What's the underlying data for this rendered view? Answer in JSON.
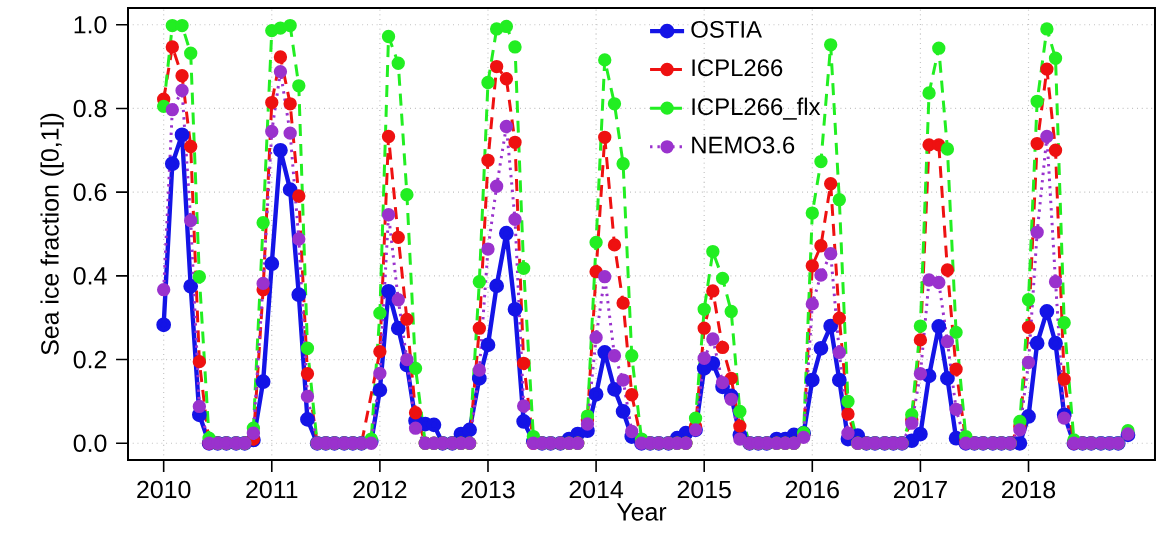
{
  "chart_data": {
    "type": "line",
    "xlabel": "Year",
    "ylabel": "Sea ice fraction ([0,1])",
    "x": [
      "2010-01",
      "2010-02",
      "2010-03",
      "2010-04",
      "2010-05",
      "2010-06",
      "2010-07",
      "2010-08",
      "2010-09",
      "2010-10",
      "2010-11",
      "2010-12",
      "2011-01",
      "2011-02",
      "2011-03",
      "2011-04",
      "2011-05",
      "2011-06",
      "2011-07",
      "2011-08",
      "2011-09",
      "2011-10",
      "2011-11",
      "2011-12",
      "2012-01",
      "2012-02",
      "2012-03",
      "2012-04",
      "2012-05",
      "2012-06",
      "2012-07",
      "2012-08",
      "2012-09",
      "2012-10",
      "2012-11",
      "2012-12",
      "2013-01",
      "2013-02",
      "2013-03",
      "2013-04",
      "2013-05",
      "2013-06",
      "2013-07",
      "2013-08",
      "2013-09",
      "2013-10",
      "2013-11",
      "2013-12",
      "2014-01",
      "2014-02",
      "2014-03",
      "2014-04",
      "2014-05",
      "2014-06",
      "2014-07",
      "2014-08",
      "2014-09",
      "2014-10",
      "2014-11",
      "2014-12",
      "2015-01",
      "2015-02",
      "2015-03",
      "2015-04",
      "2015-05",
      "2015-06",
      "2015-07",
      "2015-08",
      "2015-09",
      "2015-10",
      "2015-11",
      "2015-12",
      "2016-01",
      "2016-02",
      "2016-03",
      "2016-04",
      "2016-05",
      "2016-06",
      "2016-07",
      "2016-08",
      "2016-09",
      "2016-10",
      "2016-11",
      "2016-12",
      "2017-01",
      "2017-02",
      "2017-03",
      "2017-04",
      "2017-05",
      "2017-06",
      "2017-07",
      "2017-08",
      "2017-09",
      "2017-10",
      "2017-11",
      "2017-12",
      "2018-01",
      "2018-02",
      "2018-03",
      "2018-04",
      "2018-05",
      "2018-06",
      "2018-07",
      "2018-08",
      "2018-09",
      "2018-10",
      "2018-11",
      "2018-12"
    ],
    "series": [
      {
        "name": "OSTIA",
        "color": "#1414e6",
        "line_style": "solid",
        "values": [
          0.283,
          0.668,
          0.737,
          0.375,
          0.068,
          0,
          0,
          0,
          0,
          0,
          0.008,
          0.147,
          0.429,
          0.7,
          0.606,
          0.355,
          0.057,
          0,
          0,
          0,
          0,
          0,
          0,
          0.004,
          0.127,
          0.363,
          0.275,
          0.187,
          0.054,
          0.046,
          0.044,
          0,
          0,
          0.022,
          0.032,
          0.155,
          0.235,
          0.376,
          0.502,
          0.32,
          0.052,
          0.004,
          0,
          0,
          0,
          0.01,
          0.022,
          0.03,
          0.117,
          0.217,
          0.129,
          0.076,
          0.016,
          0,
          0,
          0,
          0,
          0.012,
          0.024,
          0.032,
          0.179,
          0.191,
          0.135,
          0.113,
          0.02,
          0,
          0,
          0,
          0.01,
          0.01,
          0.02,
          0.024,
          0.151,
          0.227,
          0.28,
          0.151,
          0.01,
          0.018,
          0,
          0,
          0,
          0,
          0,
          0.006,
          0.022,
          0.161,
          0.279,
          0.155,
          0.012,
          0,
          0,
          0,
          0,
          0,
          0,
          0,
          0.064,
          0.239,
          0.315,
          0.239,
          0.068,
          0,
          0,
          0,
          0,
          0,
          0,
          0.02
        ]
      },
      {
        "name": "ICPL266",
        "color": "#ee1111",
        "line_style": "dashed",
        "values": [
          0.822,
          0.947,
          0.878,
          0.709,
          0.195,
          0,
          0,
          0,
          0,
          0,
          0.01,
          0.367,
          0.814,
          0.923,
          0.811,
          0.591,
          0.166,
          0,
          0,
          0,
          0,
          0,
          0,
          null,
          0.219,
          0.733,
          0.492,
          0.296,
          0.073,
          0,
          0,
          0,
          0,
          0,
          0,
          0.275,
          0.676,
          0.9,
          0.871,
          0.719,
          0.191,
          0,
          0,
          0,
          0,
          0,
          0,
          0.056,
          0.41,
          0.731,
          0.474,
          0.335,
          0.116,
          0.005,
          0,
          0,
          0,
          0,
          0,
          0.04,
          0.275,
          0.364,
          0.229,
          0.155,
          0.041,
          0,
          0,
          0,
          0,
          0,
          0,
          0.02,
          0.424,
          0.472,
          0.62,
          0.299,
          0.07,
          0,
          0,
          0,
          0,
          0,
          0,
          0.056,
          0.247,
          0.713,
          0.713,
          0.414,
          0.177,
          0.005,
          0,
          0,
          0,
          0,
          0,
          0.04,
          0.277,
          0.716,
          0.894,
          0.7,
          0.153,
          0,
          0,
          0,
          null,
          null,
          null,
          null
        ]
      },
      {
        "name": "ICPL266_flx",
        "color": "#22ee22",
        "line_style": "dashed",
        "values": [
          0.805,
          0.998,
          0.998,
          0.932,
          0.398,
          0.012,
          0,
          0,
          0,
          0,
          0.036,
          0.527,
          0.986,
          0.992,
          0.998,
          0.854,
          0.227,
          0,
          0,
          0,
          0,
          0,
          0,
          0.01,
          0.311,
          0.972,
          0.908,
          0.594,
          0.179,
          0,
          0,
          0,
          0,
          0,
          0,
          0.386,
          0.862,
          0.99,
          0.996,
          0.947,
          0.418,
          0.016,
          0,
          0,
          0,
          0,
          0,
          0.065,
          0.48,
          0.916,
          0.811,
          0.668,
          0.209,
          0.01,
          0,
          0,
          0,
          0,
          0,
          0.06,
          0.32,
          0.458,
          0.394,
          0.315,
          0.076,
          0,
          0,
          0,
          0,
          0,
          0,
          0.025,
          0.55,
          0.673,
          0.952,
          0.582,
          0.1,
          0,
          0,
          0,
          0,
          0,
          0,
          0.068,
          0.28,
          0.837,
          0.944,
          0.703,
          0.265,
          0.016,
          0,
          0,
          0,
          0,
          0,
          0.052,
          0.343,
          0.817,
          0.99,
          0.92,
          0.288,
          0.008,
          0,
          0,
          0,
          0,
          0,
          0.03
        ]
      },
      {
        "name": "NEMO3.6",
        "color": "#9a32cd",
        "line_style": "dotted",
        "values": [
          0.367,
          0.797,
          0.843,
          0.532,
          0.088,
          0,
          0,
          0,
          0,
          0,
          0.024,
          0.382,
          0.745,
          0.888,
          0.741,
          0.488,
          0.112,
          0,
          0,
          0,
          0,
          0,
          0,
          0,
          0.167,
          0.546,
          0.343,
          0.2,
          0.036,
          0,
          0,
          0,
          0,
          0,
          0,
          0.175,
          0.464,
          0.614,
          0.757,
          0.535,
          0.089,
          0,
          0,
          0,
          0,
          0,
          0,
          0.046,
          0.253,
          0.398,
          0.209,
          0.151,
          0.028,
          0,
          0,
          0,
          0,
          0,
          0,
          0.032,
          0.203,
          0.249,
          0.145,
          0.105,
          0.01,
          0,
          0,
          0,
          0,
          0,
          0,
          0.014,
          0.333,
          0.402,
          0.453,
          0.217,
          0.024,
          0,
          0,
          0,
          0,
          0,
          0,
          0.048,
          0.166,
          0.39,
          0.384,
          0.243,
          0.081,
          0,
          0,
          0,
          0,
          0,
          0,
          0.032,
          0.193,
          0.504,
          0.733,
          0.386,
          0.06,
          0,
          0,
          0,
          0,
          0,
          0,
          0.022
        ]
      }
    ],
    "xlim": [
      "2009-09",
      "2019-03"
    ],
    "xticks": [
      "2010",
      "2011",
      "2012",
      "2013",
      "2014",
      "2015",
      "2016",
      "2017",
      "2018"
    ],
    "ylim": [
      -0.04,
      1.04
    ],
    "yticks": [
      {
        "value": 0,
        "label": "0.0"
      },
      0.2,
      0.4,
      0.6,
      0.8,
      {
        "value": 1,
        "label": "1.0"
      }
    ],
    "grid": true,
    "legend": "top",
    "marker": "circle"
  }
}
